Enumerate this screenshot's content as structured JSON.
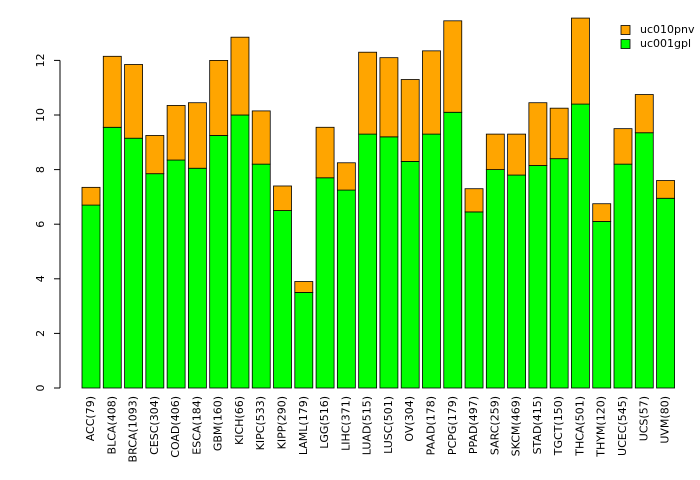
{
  "chart_data": {
    "type": "bar",
    "stacked": true,
    "categories": [
      "ACC(79)",
      "BLCA(408)",
      "BRCA(1093)",
      "CESC(304)",
      "COAD(406)",
      "ESCA(184)",
      "GBM(160)",
      "KICH(66)",
      "KIPC(533)",
      "KIPP(290)",
      "LAML(179)",
      "LGG(516)",
      "LIHC(371)",
      "LUAD(515)",
      "LUSC(501)",
      "OV(304)",
      "PAAD(178)",
      "PCPG(179)",
      "PPAD(497)",
      "SARC(259)",
      "SKCM(469)",
      "STAD(415)",
      "TGCT(150)",
      "THCA(501)",
      "THYM(120)",
      "UCEC(545)",
      "UCS(57)",
      "UVM(80)"
    ],
    "series": [
      {
        "name": "uc001gpl",
        "color": "#00ff00",
        "values": [
          6.7,
          9.55,
          9.15,
          7.85,
          8.35,
          8.05,
          9.25,
          10.0,
          8.2,
          6.5,
          3.5,
          7.7,
          7.25,
          9.3,
          9.2,
          8.3,
          9.3,
          10.1,
          6.45,
          8.0,
          7.8,
          8.15,
          8.4,
          10.4,
          6.1,
          8.2,
          9.35,
          6.95
        ]
      },
      {
        "name": "uc010pnv",
        "color": "#ffa500",
        "values": [
          0.65,
          2.6,
          2.7,
          1.4,
          2.0,
          2.4,
          2.75,
          2.85,
          1.95,
          0.9,
          0.4,
          1.85,
          1.0,
          3.0,
          2.9,
          3.0,
          3.05,
          3.35,
          0.85,
          1.3,
          1.5,
          2.3,
          1.85,
          3.15,
          0.65,
          1.3,
          1.4,
          0.65
        ]
      }
    ],
    "legend": {
      "position": "top-right",
      "entries": [
        "uc010pnv",
        "uc001gpl"
      ]
    },
    "y_ticks": [
      0,
      2,
      4,
      6,
      8,
      10,
      12
    ],
    "ylim": [
      0,
      13.7
    ],
    "title": "",
    "xlabel": "",
    "ylabel": ""
  }
}
